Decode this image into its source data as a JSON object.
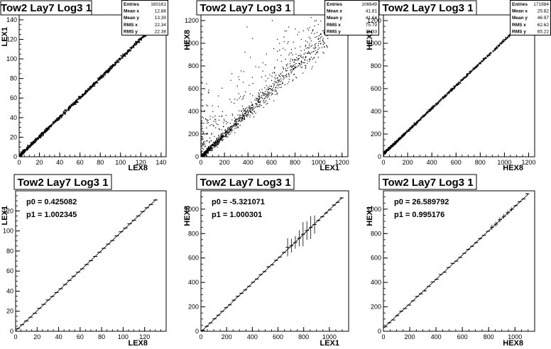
{
  "chart_data": [
    {
      "type": "scatter",
      "title": "Tow2 Lay7 Log3 1",
      "xlabel": "LEX8",
      "ylabel": "LEX1",
      "xlim": [
        0,
        145
      ],
      "ylim": [
        0,
        145
      ],
      "xticks": [
        0,
        20,
        40,
        60,
        80,
        100,
        120,
        140
      ],
      "yticks": [
        0,
        20,
        40,
        60,
        80,
        100,
        120,
        140
      ],
      "stats": [
        {
          "label": "Entries",
          "value": "160161"
        },
        {
          "label": "Mean x",
          "value": "12.88"
        },
        {
          "label": "Mean y",
          "value": "13.39"
        },
        {
          "label": "RMS x",
          "value": "22.34"
        },
        {
          "label": "RMS y",
          "value": "22.38"
        }
      ],
      "data_summary": {
        "slope": 1.0,
        "intercept": 0.4,
        "x_range": [
          0,
          130
        ]
      }
    },
    {
      "type": "scatter",
      "title": "Tow2 Lay7 Log3 1",
      "xlabel": "LEX1",
      "ylabel": "HEX8",
      "xlim": [
        0,
        1250
      ],
      "ylim": [
        0,
        1250
      ],
      "xticks": [
        0,
        200,
        400,
        600,
        800,
        1000,
        1200
      ],
      "yticks": [
        0,
        200,
        400,
        600,
        800,
        1000,
        1200
      ],
      "stats": [
        {
          "label": "Entries",
          "value": "106649"
        },
        {
          "label": "Mean x",
          "value": "41.81"
        },
        {
          "label": "Mean y",
          "value": "41.64"
        },
        {
          "label": "RMS x",
          "value": "75.79"
        },
        {
          "label": "RMS y",
          "value": "75.33"
        }
      ],
      "data_summary": {
        "slope": 1.0,
        "intercept": -5,
        "x_range": [
          0,
          1100
        ]
      }
    },
    {
      "type": "scatter",
      "title": "Tow2 Lay7 Log3 1",
      "xlabel": "HEX8",
      "ylabel": "HEX1",
      "xlim": [
        0,
        1250
      ],
      "ylim": [
        0,
        1250
      ],
      "xticks": [
        0,
        200,
        400,
        600,
        800,
        1000,
        1200
      ],
      "yticks": [
        0,
        200,
        400,
        600,
        800,
        1000,
        1200
      ],
      "stats": [
        {
          "label": "Entries",
          "value": "171984"
        },
        {
          "label": "Mean x",
          "value": "25.82"
        },
        {
          "label": "Mean y",
          "value": "46.97"
        },
        {
          "label": "RMS x",
          "value": "62.62"
        },
        {
          "label": "RMS y",
          "value": "65.22"
        }
      ],
      "data_summary": {
        "slope": 1.0,
        "intercept": 26,
        "x_range": [
          0,
          1100
        ]
      }
    },
    {
      "type": "line",
      "title": "Tow2 Lay7 Log3 1",
      "xlabel": "LEX8",
      "ylabel": "LEX1",
      "xlim": [
        0,
        140
      ],
      "ylim": [
        0,
        140
      ],
      "xticks": [
        0,
        20,
        40,
        60,
        80,
        100,
        120
      ],
      "yticks": [
        0,
        20,
        40,
        60,
        80,
        100,
        120
      ],
      "fit": {
        "p0_label": "p0 = 0.425082",
        "p1_label": "p1 = 1.002345",
        "p0": 0.425082,
        "p1": 1.002345
      },
      "data_summary": {
        "x_range": [
          0,
          131
        ],
        "profile_step": 4
      }
    },
    {
      "type": "line",
      "title": "Tow2 Lay7 Log3 1",
      "xlabel": "LEX1",
      "ylabel": "HEX8",
      "xlim": [
        0,
        1150
      ],
      "ylim": [
        0,
        1150
      ],
      "xticks": [
        0,
        200,
        400,
        600,
        800,
        1000
      ],
      "yticks": [
        0,
        200,
        400,
        600,
        800,
        1000
      ],
      "fit": {
        "p0_label": "p0 = -5.321071",
        "p1_label": "p1 = 1.000301",
        "p0": -5.321071,
        "p1": 1.000301
      },
      "data_summary": {
        "x_range": [
          0,
          1100
        ],
        "profile_step": 30
      }
    },
    {
      "type": "line",
      "title": "Tow2 Lay7 Log3 1",
      "xlabel": "HEX8",
      "ylabel": "HEX1",
      "xlim": [
        0,
        1150
      ],
      "ylim": [
        0,
        1150
      ],
      "xticks": [
        0,
        200,
        400,
        600,
        800,
        1000
      ],
      "yticks": [
        0,
        200,
        400,
        600,
        800,
        1000
      ],
      "fit": {
        "p0_label": "p0 = 26.589792",
        "p1_label": "p1 = 0.995176",
        "p0": 26.589792,
        "p1": 0.995176
      },
      "data_summary": {
        "x_range": [
          0,
          1100
        ],
        "profile_step": 30
      }
    }
  ]
}
